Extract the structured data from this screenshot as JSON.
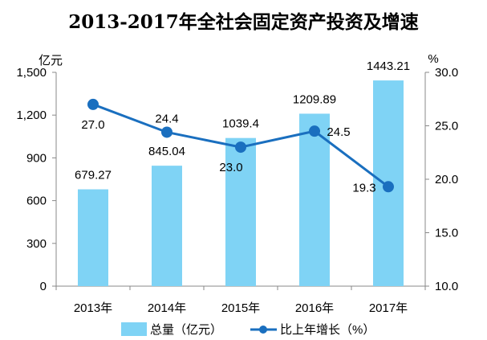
{
  "chart_data": {
    "type": "bar+line",
    "title": "2013-2017年全社会固定资产投资及增速",
    "categories": [
      "2013年",
      "2014年",
      "2015年",
      "2016年",
      "2017年"
    ],
    "series": [
      {
        "name": "总量（亿元）",
        "type": "bar",
        "axis": "left",
        "values": [
          679.27,
          845.04,
          1039.4,
          1209.89,
          1443.21
        ],
        "labels": [
          "679.27",
          "845.04",
          "1039.4",
          "1209.89",
          "1443.21"
        ],
        "color": "#7fd3f5"
      },
      {
        "name": "比上年增长（%）",
        "type": "line",
        "axis": "right",
        "values": [
          27.0,
          24.4,
          23.0,
          24.5,
          19.3
        ],
        "labels": [
          "27.0",
          "24.4",
          "23.0",
          "24.5",
          "19.3"
        ],
        "color": "#1a6fbf"
      }
    ],
    "ylabel_left": "亿元",
    "ylabel_right": "%",
    "ylim_left": [
      0,
      1500
    ],
    "yticks_left": [
      "0",
      "300",
      "600",
      "900",
      "1,200",
      "1,500"
    ],
    "ylim_right": [
      10,
      30
    ],
    "yticks_right": [
      "10.0",
      "15.0",
      "20.0",
      "25.0",
      "30.0"
    ],
    "legend": "bottom",
    "grid": false
  }
}
